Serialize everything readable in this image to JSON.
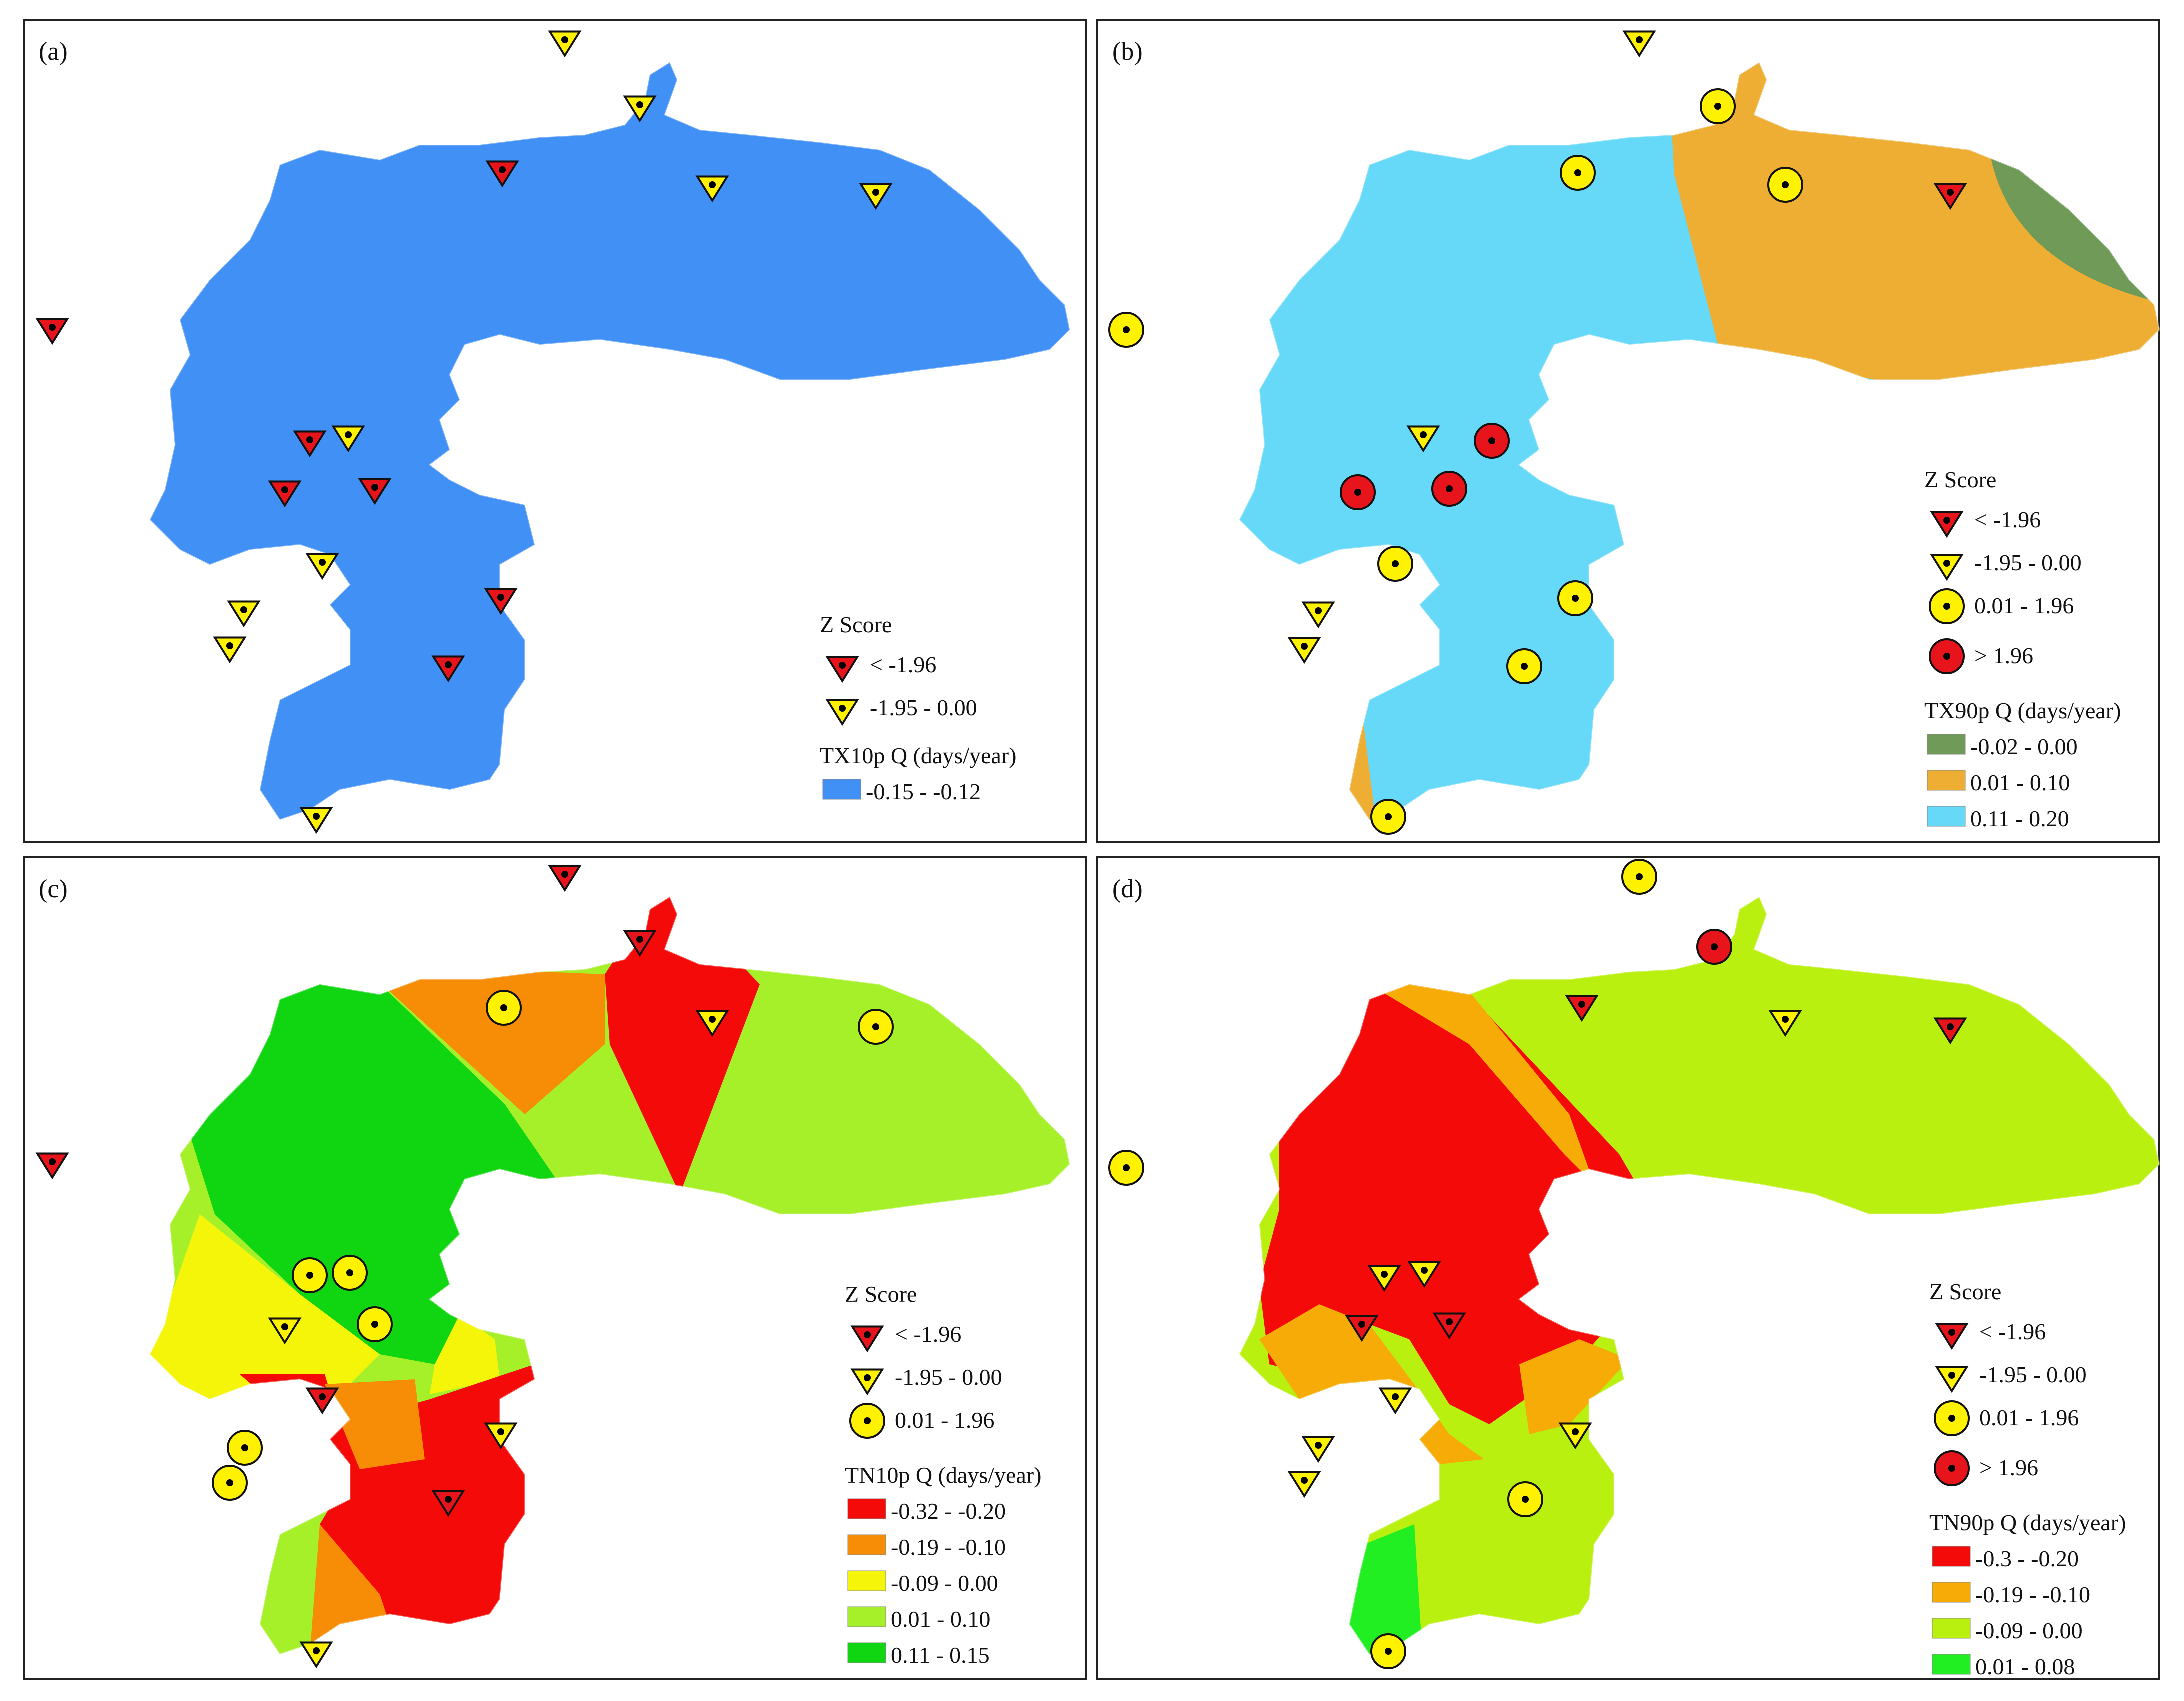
{
  "colors": {
    "red_marker": "#e8141c",
    "yellow_marker": "#fff200",
    "frame": "#222222",
    "tx10p_blue": "#4190f5",
    "tx90p_green": "#6f9a58",
    "tx90p_orange": "#eeae33",
    "tx90p_cyan": "#66d8f8",
    "tn10p_red": "#f50a0a",
    "tn10p_orange": "#f78c06",
    "tn10p_yellow": "#f5f50a",
    "tn10p_lime": "#a6f02a",
    "tn10p_green": "#10d612",
    "tn90p_red": "#f50a0a",
    "tn90p_orange": "#f6ab07",
    "tn90p_lime": "#b9f00f",
    "tn90p_green": "#22ef22"
  },
  "panels": [
    {
      "label": "(a)",
      "index_name": "TX10p",
      "legend": {
        "z_title": "Z Score",
        "z_items": [
          {
            "symbol": "red-triangle-icon",
            "label": "< -1.96"
          },
          {
            "symbol": "yellow-triangle-icon",
            "label": "-1.95 - 0.00"
          }
        ],
        "q_title": "TX10p Q (days/year)",
        "q_items": [
          {
            "color": "#4190f5",
            "label": "-0.15 - -0.12"
          }
        ]
      }
    },
    {
      "label": "(b)",
      "index_name": "TX90p",
      "legend": {
        "z_title": "Z Score",
        "z_items": [
          {
            "symbol": "red-triangle-icon",
            "label": "< -1.96"
          },
          {
            "symbol": "yellow-triangle-icon",
            "label": "-1.95 - 0.00"
          },
          {
            "symbol": "yellow-circle-icon",
            "label": "0.01 - 1.96"
          },
          {
            "symbol": "red-circle-icon",
            "label": "> 1.96"
          }
        ],
        "q_title": "TX90p Q (days/year)",
        "q_items": [
          {
            "color": "#6f9a58",
            "label": "-0.02 - 0.00"
          },
          {
            "color": "#eeae33",
            "label": "0.01 - 0.10"
          },
          {
            "color": "#66d8f8",
            "label": "0.11 - 0.20"
          }
        ]
      }
    },
    {
      "label": "(c)",
      "index_name": "TN10p",
      "legend": {
        "z_title": "Z Score",
        "z_items": [
          {
            "symbol": "red-triangle-icon",
            "label": "< -1.96"
          },
          {
            "symbol": "yellow-triangle-icon",
            "label": "-1.95 - 0.00"
          },
          {
            "symbol": "yellow-circle-icon",
            "label": "0.01 - 1.96"
          }
        ],
        "q_title": "TN10p Q (days/year)",
        "q_items": [
          {
            "color": "#f50a0a",
            "label": "-0.32 - -0.20"
          },
          {
            "color": "#f78c06",
            "label": "-0.19 - -0.10"
          },
          {
            "color": "#f5f50a",
            "label": "-0.09 - 0.00"
          },
          {
            "color": "#a6f02a",
            "label": "0.01 - 0.10"
          },
          {
            "color": "#10d612",
            "label": "0.11 - 0.15"
          }
        ]
      }
    },
    {
      "label": "(d)",
      "index_name": "TN90p",
      "legend": {
        "z_title": "Z Score",
        "z_items": [
          {
            "symbol": "red-triangle-icon",
            "label": "< -1.96"
          },
          {
            "symbol": "yellow-triangle-icon",
            "label": "-1.95 - 0.00"
          },
          {
            "symbol": "yellow-circle-icon",
            "label": "0.01 - 1.96"
          },
          {
            "symbol": "red-circle-icon",
            "label": "> 1.96"
          }
        ],
        "q_title": "TN90p Q (days/year)",
        "q_items": [
          {
            "color": "#f50a0a",
            "label": "-0.3 - -0.20"
          },
          {
            "color": "#f6ab07",
            "label": "-0.19 - -0.10"
          },
          {
            "color": "#b9f00f",
            "label": "-0.09 - 0.00"
          },
          {
            "color": "#22ef22",
            "label": "0.01 - 0.08"
          }
        ]
      }
    }
  ]
}
